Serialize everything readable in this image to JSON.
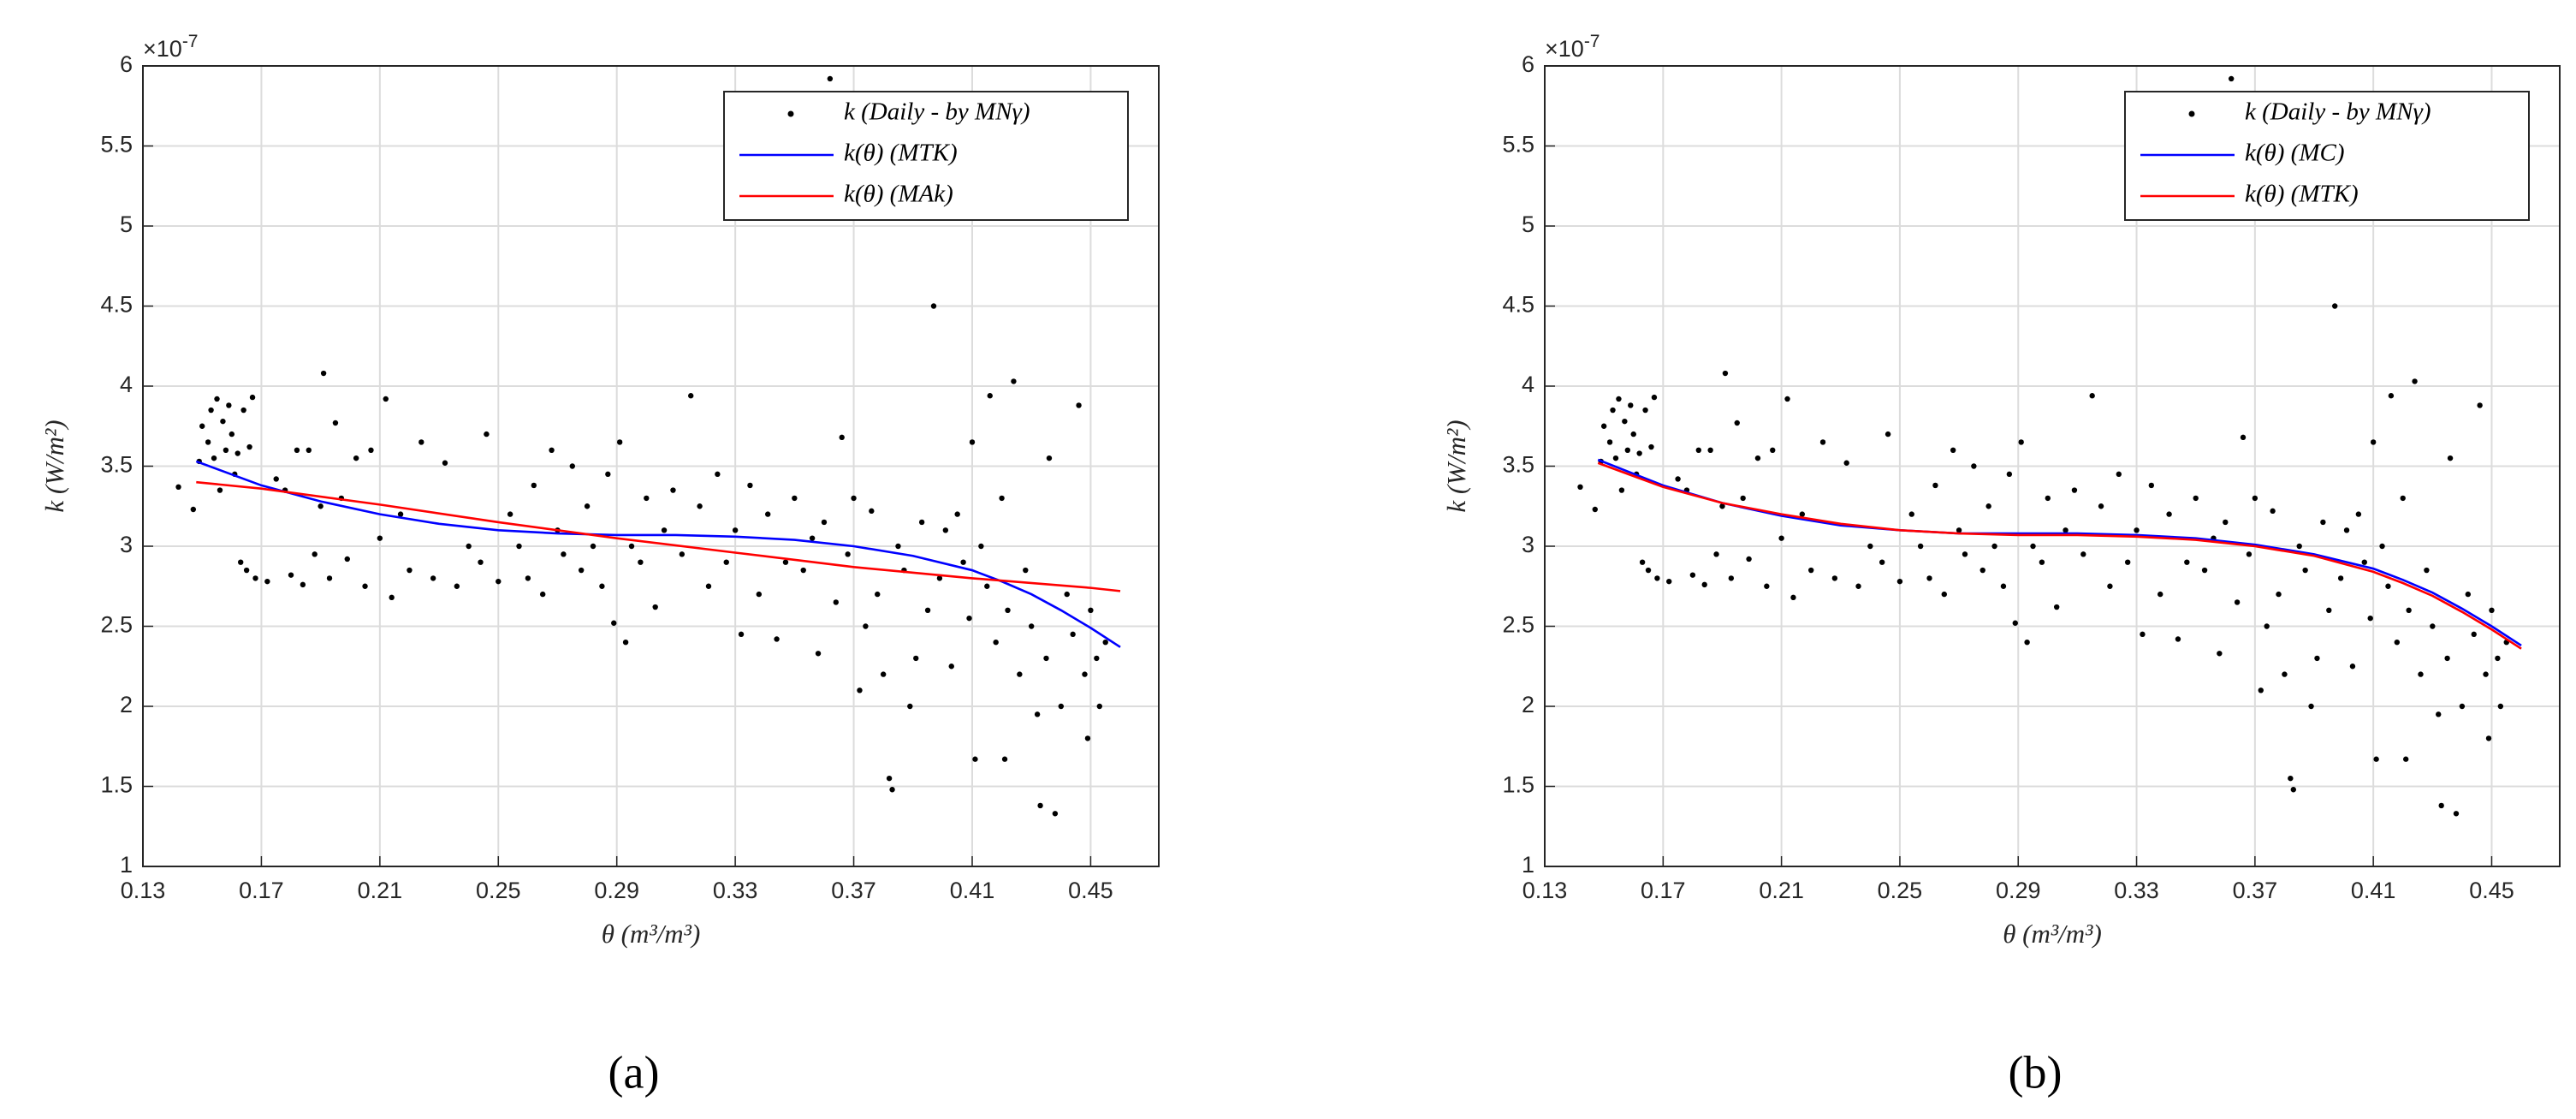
{
  "chart_data": [
    {
      "type": "scatter",
      "panel_label": "(a)",
      "xlabel": "θ (m³/m³)",
      "ylabel": "k (W/m²)",
      "axis_multiplier": {
        "base": "×10",
        "exponent": "-7"
      },
      "xlim": [
        0.13,
        0.473
      ],
      "xticks": [
        0.13,
        0.17,
        0.21,
        0.25,
        0.29,
        0.33,
        0.37,
        0.41,
        0.45
      ],
      "ylim": [
        1,
        6
      ],
      "yticks": [
        1,
        1.5,
        2,
        2.5,
        3,
        3.5,
        4,
        4.5,
        5,
        5.5,
        6
      ],
      "grid": true,
      "legend": "upper right",
      "series": [
        {
          "name": "k (Daily - by MNγ)",
          "color": "#000000",
          "style": "markers",
          "x": [
            0.142,
            0.147,
            0.149,
            0.15,
            0.152,
            0.153,
            0.154,
            0.155,
            0.156,
            0.157,
            0.158,
            0.159,
            0.16,
            0.161,
            0.162,
            0.163,
            0.164,
            0.165,
            0.166,
            0.167,
            0.168,
            0.172,
            0.175,
            0.178,
            0.18,
            0.182,
            0.184,
            0.186,
            0.188,
            0.19,
            0.191,
            0.193,
            0.195,
            0.197,
            0.199,
            0.202,
            0.205,
            0.207,
            0.21,
            0.212,
            0.214,
            0.217,
            0.22,
            0.224,
            0.228,
            0.232,
            0.236,
            0.24,
            0.244,
            0.246,
            0.25,
            0.254,
            0.257,
            0.26,
            0.262,
            0.265,
            0.268,
            0.27,
            0.272,
            0.275,
            0.278,
            0.28,
            0.282,
            0.285,
            0.287,
            0.289,
            0.291,
            0.293,
            0.295,
            0.298,
            0.3,
            0.303,
            0.306,
            0.309,
            0.312,
            0.315,
            0.318,
            0.321,
            0.324,
            0.327,
            0.33,
            0.332,
            0.335,
            0.338,
            0.341,
            0.344,
            0.347,
            0.35,
            0.353,
            0.356,
            0.358,
            0.36,
            0.362,
            0.364,
            0.366,
            0.368,
            0.37,
            0.372,
            0.374,
            0.376,
            0.378,
            0.38,
            0.382,
            0.383,
            0.385,
            0.387,
            0.389,
            0.391,
            0.393,
            0.395,
            0.397,
            0.399,
            0.401,
            0.403,
            0.405,
            0.407,
            0.409,
            0.41,
            0.411,
            0.413,
            0.415,
            0.416,
            0.418,
            0.42,
            0.421,
            0.422,
            0.424,
            0.426,
            0.428,
            0.43,
            0.432,
            0.433,
            0.435,
            0.436,
            0.438,
            0.44,
            0.442,
            0.444,
            0.446,
            0.448,
            0.449,
            0.45,
            0.452,
            0.453,
            0.455
          ],
          "values": [
            3.37,
            3.23,
            3.53,
            3.75,
            3.65,
            3.85,
            3.55,
            3.92,
            3.35,
            3.78,
            3.6,
            3.88,
            3.7,
            3.45,
            3.58,
            2.9,
            3.85,
            2.85,
            3.62,
            3.93,
            2.8,
            2.78,
            3.42,
            3.35,
            2.82,
            3.6,
            2.76,
            3.6,
            2.95,
            3.25,
            4.08,
            2.8,
            3.77,
            3.3,
            2.92,
            3.55,
            2.75,
            3.6,
            3.05,
            3.92,
            2.68,
            3.2,
            2.85,
            3.65,
            2.8,
            3.52,
            2.75,
            3.0,
            2.9,
            3.7,
            2.78,
            3.2,
            3.0,
            2.8,
            3.38,
            2.7,
            3.6,
            3.1,
            2.95,
            3.5,
            2.85,
            3.25,
            3.0,
            2.75,
            3.45,
            2.52,
            3.65,
            2.4,
            3.0,
            2.9,
            3.3,
            2.62,
            3.1,
            3.35,
            2.95,
            3.94,
            3.25,
            2.75,
            3.45,
            2.9,
            3.1,
            2.45,
            3.38,
            2.7,
            3.2,
            2.42,
            2.9,
            3.3,
            2.85,
            3.05,
            2.33,
            3.15,
            5.92,
            2.65,
            3.68,
            2.95,
            3.3,
            2.1,
            2.5,
            3.22,
            2.7,
            2.2,
            1.55,
            1.48,
            3.0,
            2.85,
            2.0,
            2.3,
            3.15,
            2.6,
            4.5,
            2.8,
            3.1,
            2.25,
            3.2,
            2.9,
            2.55,
            3.65,
            1.67,
            3.0,
            2.75,
            3.94,
            2.4,
            3.3,
            1.67,
            2.6,
            4.03,
            2.2,
            2.85,
            2.5,
            1.95,
            1.38,
            2.3,
            3.55,
            1.33,
            2.0,
            2.7,
            2.45,
            3.88,
            2.2,
            1.8,
            2.6,
            2.3,
            2.0,
            2.4
          ]
        },
        {
          "name": "k(θ) (MTK)",
          "color": "#0000ff",
          "style": "line",
          "x": [
            0.148,
            0.17,
            0.19,
            0.21,
            0.23,
            0.25,
            0.27,
            0.29,
            0.31,
            0.33,
            0.35,
            0.37,
            0.39,
            0.41,
            0.42,
            0.43,
            0.44,
            0.45,
            0.46
          ],
          "values": [
            3.53,
            3.38,
            3.28,
            3.2,
            3.14,
            3.1,
            3.08,
            3.07,
            3.07,
            3.06,
            3.04,
            3.0,
            2.94,
            2.85,
            2.78,
            2.7,
            2.6,
            2.49,
            2.37
          ]
        },
        {
          "name": "k(θ) (MAk)",
          "color": "#ff0000",
          "style": "line",
          "x": [
            0.148,
            0.17,
            0.21,
            0.25,
            0.29,
            0.33,
            0.37,
            0.41,
            0.45,
            0.46
          ],
          "values": [
            3.4,
            3.36,
            3.26,
            3.15,
            3.05,
            2.96,
            2.87,
            2.8,
            2.74,
            2.72
          ]
        }
      ]
    },
    {
      "type": "scatter",
      "panel_label": "(b)",
      "xlabel": "θ (m³/m³)",
      "ylabel": "k (W/m²)",
      "axis_multiplier": {
        "base": "×10",
        "exponent": "-7"
      },
      "xlim": [
        0.13,
        0.473
      ],
      "xticks": [
        0.13,
        0.17,
        0.21,
        0.25,
        0.29,
        0.33,
        0.37,
        0.41,
        0.45
      ],
      "ylim": [
        1,
        6
      ],
      "yticks": [
        1,
        1.5,
        2,
        2.5,
        3,
        3.5,
        4,
        4.5,
        5,
        5.5,
        6
      ],
      "grid": true,
      "legend": "upper right",
      "series": [
        {
          "name": "k (Daily - by MNγ)",
          "color": "#000000",
          "style": "markers",
          "x": [
            0.142,
            0.147,
            0.149,
            0.15,
            0.152,
            0.153,
            0.154,
            0.155,
            0.156,
            0.157,
            0.158,
            0.159,
            0.16,
            0.161,
            0.162,
            0.163,
            0.164,
            0.165,
            0.166,
            0.167,
            0.168,
            0.172,
            0.175,
            0.178,
            0.18,
            0.182,
            0.184,
            0.186,
            0.188,
            0.19,
            0.191,
            0.193,
            0.195,
            0.197,
            0.199,
            0.202,
            0.205,
            0.207,
            0.21,
            0.212,
            0.214,
            0.217,
            0.22,
            0.224,
            0.228,
            0.232,
            0.236,
            0.24,
            0.244,
            0.246,
            0.25,
            0.254,
            0.257,
            0.26,
            0.262,
            0.265,
            0.268,
            0.27,
            0.272,
            0.275,
            0.278,
            0.28,
            0.282,
            0.285,
            0.287,
            0.289,
            0.291,
            0.293,
            0.295,
            0.298,
            0.3,
            0.303,
            0.306,
            0.309,
            0.312,
            0.315,
            0.318,
            0.321,
            0.324,
            0.327,
            0.33,
            0.332,
            0.335,
            0.338,
            0.341,
            0.344,
            0.347,
            0.35,
            0.353,
            0.356,
            0.358,
            0.36,
            0.362,
            0.364,
            0.366,
            0.368,
            0.37,
            0.372,
            0.374,
            0.376,
            0.378,
            0.38,
            0.382,
            0.383,
            0.385,
            0.387,
            0.389,
            0.391,
            0.393,
            0.395,
            0.397,
            0.399,
            0.401,
            0.403,
            0.405,
            0.407,
            0.409,
            0.41,
            0.411,
            0.413,
            0.415,
            0.416,
            0.418,
            0.42,
            0.421,
            0.422,
            0.424,
            0.426,
            0.428,
            0.43,
            0.432,
            0.433,
            0.435,
            0.436,
            0.438,
            0.44,
            0.442,
            0.444,
            0.446,
            0.448,
            0.449,
            0.45,
            0.452,
            0.453,
            0.455
          ],
          "values": [
            3.37,
            3.23,
            3.53,
            3.75,
            3.65,
            3.85,
            3.55,
            3.92,
            3.35,
            3.78,
            3.6,
            3.88,
            3.7,
            3.45,
            3.58,
            2.9,
            3.85,
            2.85,
            3.62,
            3.93,
            2.8,
            2.78,
            3.42,
            3.35,
            2.82,
            3.6,
            2.76,
            3.6,
            2.95,
            3.25,
            4.08,
            2.8,
            3.77,
            3.3,
            2.92,
            3.55,
            2.75,
            3.6,
            3.05,
            3.92,
            2.68,
            3.2,
            2.85,
            3.65,
            2.8,
            3.52,
            2.75,
            3.0,
            2.9,
            3.7,
            2.78,
            3.2,
            3.0,
            2.8,
            3.38,
            2.7,
            3.6,
            3.1,
            2.95,
            3.5,
            2.85,
            3.25,
            3.0,
            2.75,
            3.45,
            2.52,
            3.65,
            2.4,
            3.0,
            2.9,
            3.3,
            2.62,
            3.1,
            3.35,
            2.95,
            3.94,
            3.25,
            2.75,
            3.45,
            2.9,
            3.1,
            2.45,
            3.38,
            2.7,
            3.2,
            2.42,
            2.9,
            3.3,
            2.85,
            3.05,
            2.33,
            3.15,
            5.92,
            2.65,
            3.68,
            2.95,
            3.3,
            2.1,
            2.5,
            3.22,
            2.7,
            2.2,
            1.55,
            1.48,
            3.0,
            2.85,
            2.0,
            2.3,
            3.15,
            2.6,
            4.5,
            2.8,
            3.1,
            2.25,
            3.2,
            2.9,
            2.55,
            3.65,
            1.67,
            3.0,
            2.75,
            3.94,
            2.4,
            3.3,
            1.67,
            2.6,
            4.03,
            2.2,
            2.85,
            2.5,
            1.95,
            1.38,
            2.3,
            3.55,
            1.33,
            2.0,
            2.7,
            2.45,
            3.88,
            2.2,
            1.8,
            2.6,
            2.3,
            2.0,
            2.4
          ]
        },
        {
          "name": "k(θ) (MC)",
          "color": "#0000ff",
          "style": "line",
          "x": [
            0.148,
            0.17,
            0.19,
            0.21,
            0.23,
            0.25,
            0.27,
            0.29,
            0.31,
            0.33,
            0.35,
            0.37,
            0.39,
            0.41,
            0.42,
            0.43,
            0.44,
            0.45,
            0.46
          ],
          "values": [
            3.54,
            3.38,
            3.27,
            3.19,
            3.13,
            3.1,
            3.08,
            3.08,
            3.08,
            3.07,
            3.05,
            3.01,
            2.95,
            2.86,
            2.79,
            2.71,
            2.61,
            2.5,
            2.38
          ]
        },
        {
          "name": "k(θ) (MTK)",
          "color": "#ff0000",
          "style": "line",
          "x": [
            0.148,
            0.17,
            0.19,
            0.21,
            0.23,
            0.25,
            0.27,
            0.29,
            0.31,
            0.33,
            0.35,
            0.37,
            0.39,
            0.41,
            0.42,
            0.43,
            0.44,
            0.45,
            0.46
          ],
          "values": [
            3.52,
            3.37,
            3.27,
            3.2,
            3.14,
            3.1,
            3.08,
            3.07,
            3.07,
            3.06,
            3.04,
            3.0,
            2.94,
            2.84,
            2.77,
            2.69,
            2.59,
            2.48,
            2.36
          ]
        }
      ]
    }
  ]
}
